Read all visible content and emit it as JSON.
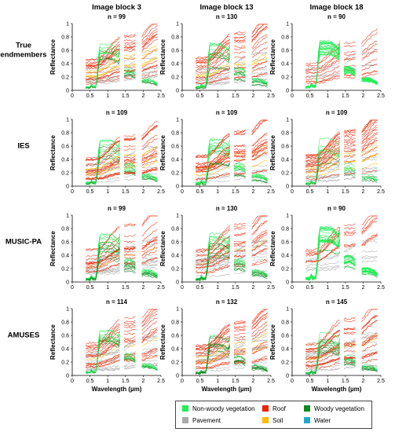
{
  "chart_data": {
    "type": "line",
    "columns": [
      "Image block 3",
      "Image block 13",
      "Image block 18"
    ],
    "rows": [
      "True endmembers",
      "IES",
      "MUSIC-PA",
      "AMUSES"
    ],
    "xlabel": "Wavelength (µm)",
    "ylabel": "Reflectance",
    "xlim": [
      0,
      2.5
    ],
    "ylim": [
      0,
      1
    ],
    "xticks": [
      "0",
      "0.5",
      "1",
      "1.5",
      "2",
      "2.5"
    ],
    "yticks": [
      "0",
      "0.2",
      "0.4",
      "0.6",
      "0.8",
      "1"
    ],
    "n_labels": [
      [
        "n = 99",
        "n = 130",
        "n = 90"
      ],
      [
        "n = 109",
        "n = 109",
        "n = 109"
      ],
      [
        "n = 99",
        "n = 130",
        "n = 90"
      ],
      [
        "n = 114",
        "n = 132",
        "n = 145"
      ]
    ],
    "grid": false,
    "legend_position": "bottom",
    "water_absorption_gaps_um": [
      [
        1.35,
        1.45
      ],
      [
        1.8,
        1.95
      ]
    ],
    "classes": [
      {
        "name": "Non-woody vegetation",
        "color": "#22ee55"
      },
      {
        "name": "Roof",
        "color": "#ee2200"
      },
      {
        "name": "Woody vegetation",
        "color": "#118822"
      },
      {
        "name": "Pavement",
        "color": "#aaaaaa"
      },
      {
        "name": "Soil",
        "color": "#ffbb00"
      },
      {
        "name": "Water",
        "color": "#22aacc"
      }
    ]
  }
}
